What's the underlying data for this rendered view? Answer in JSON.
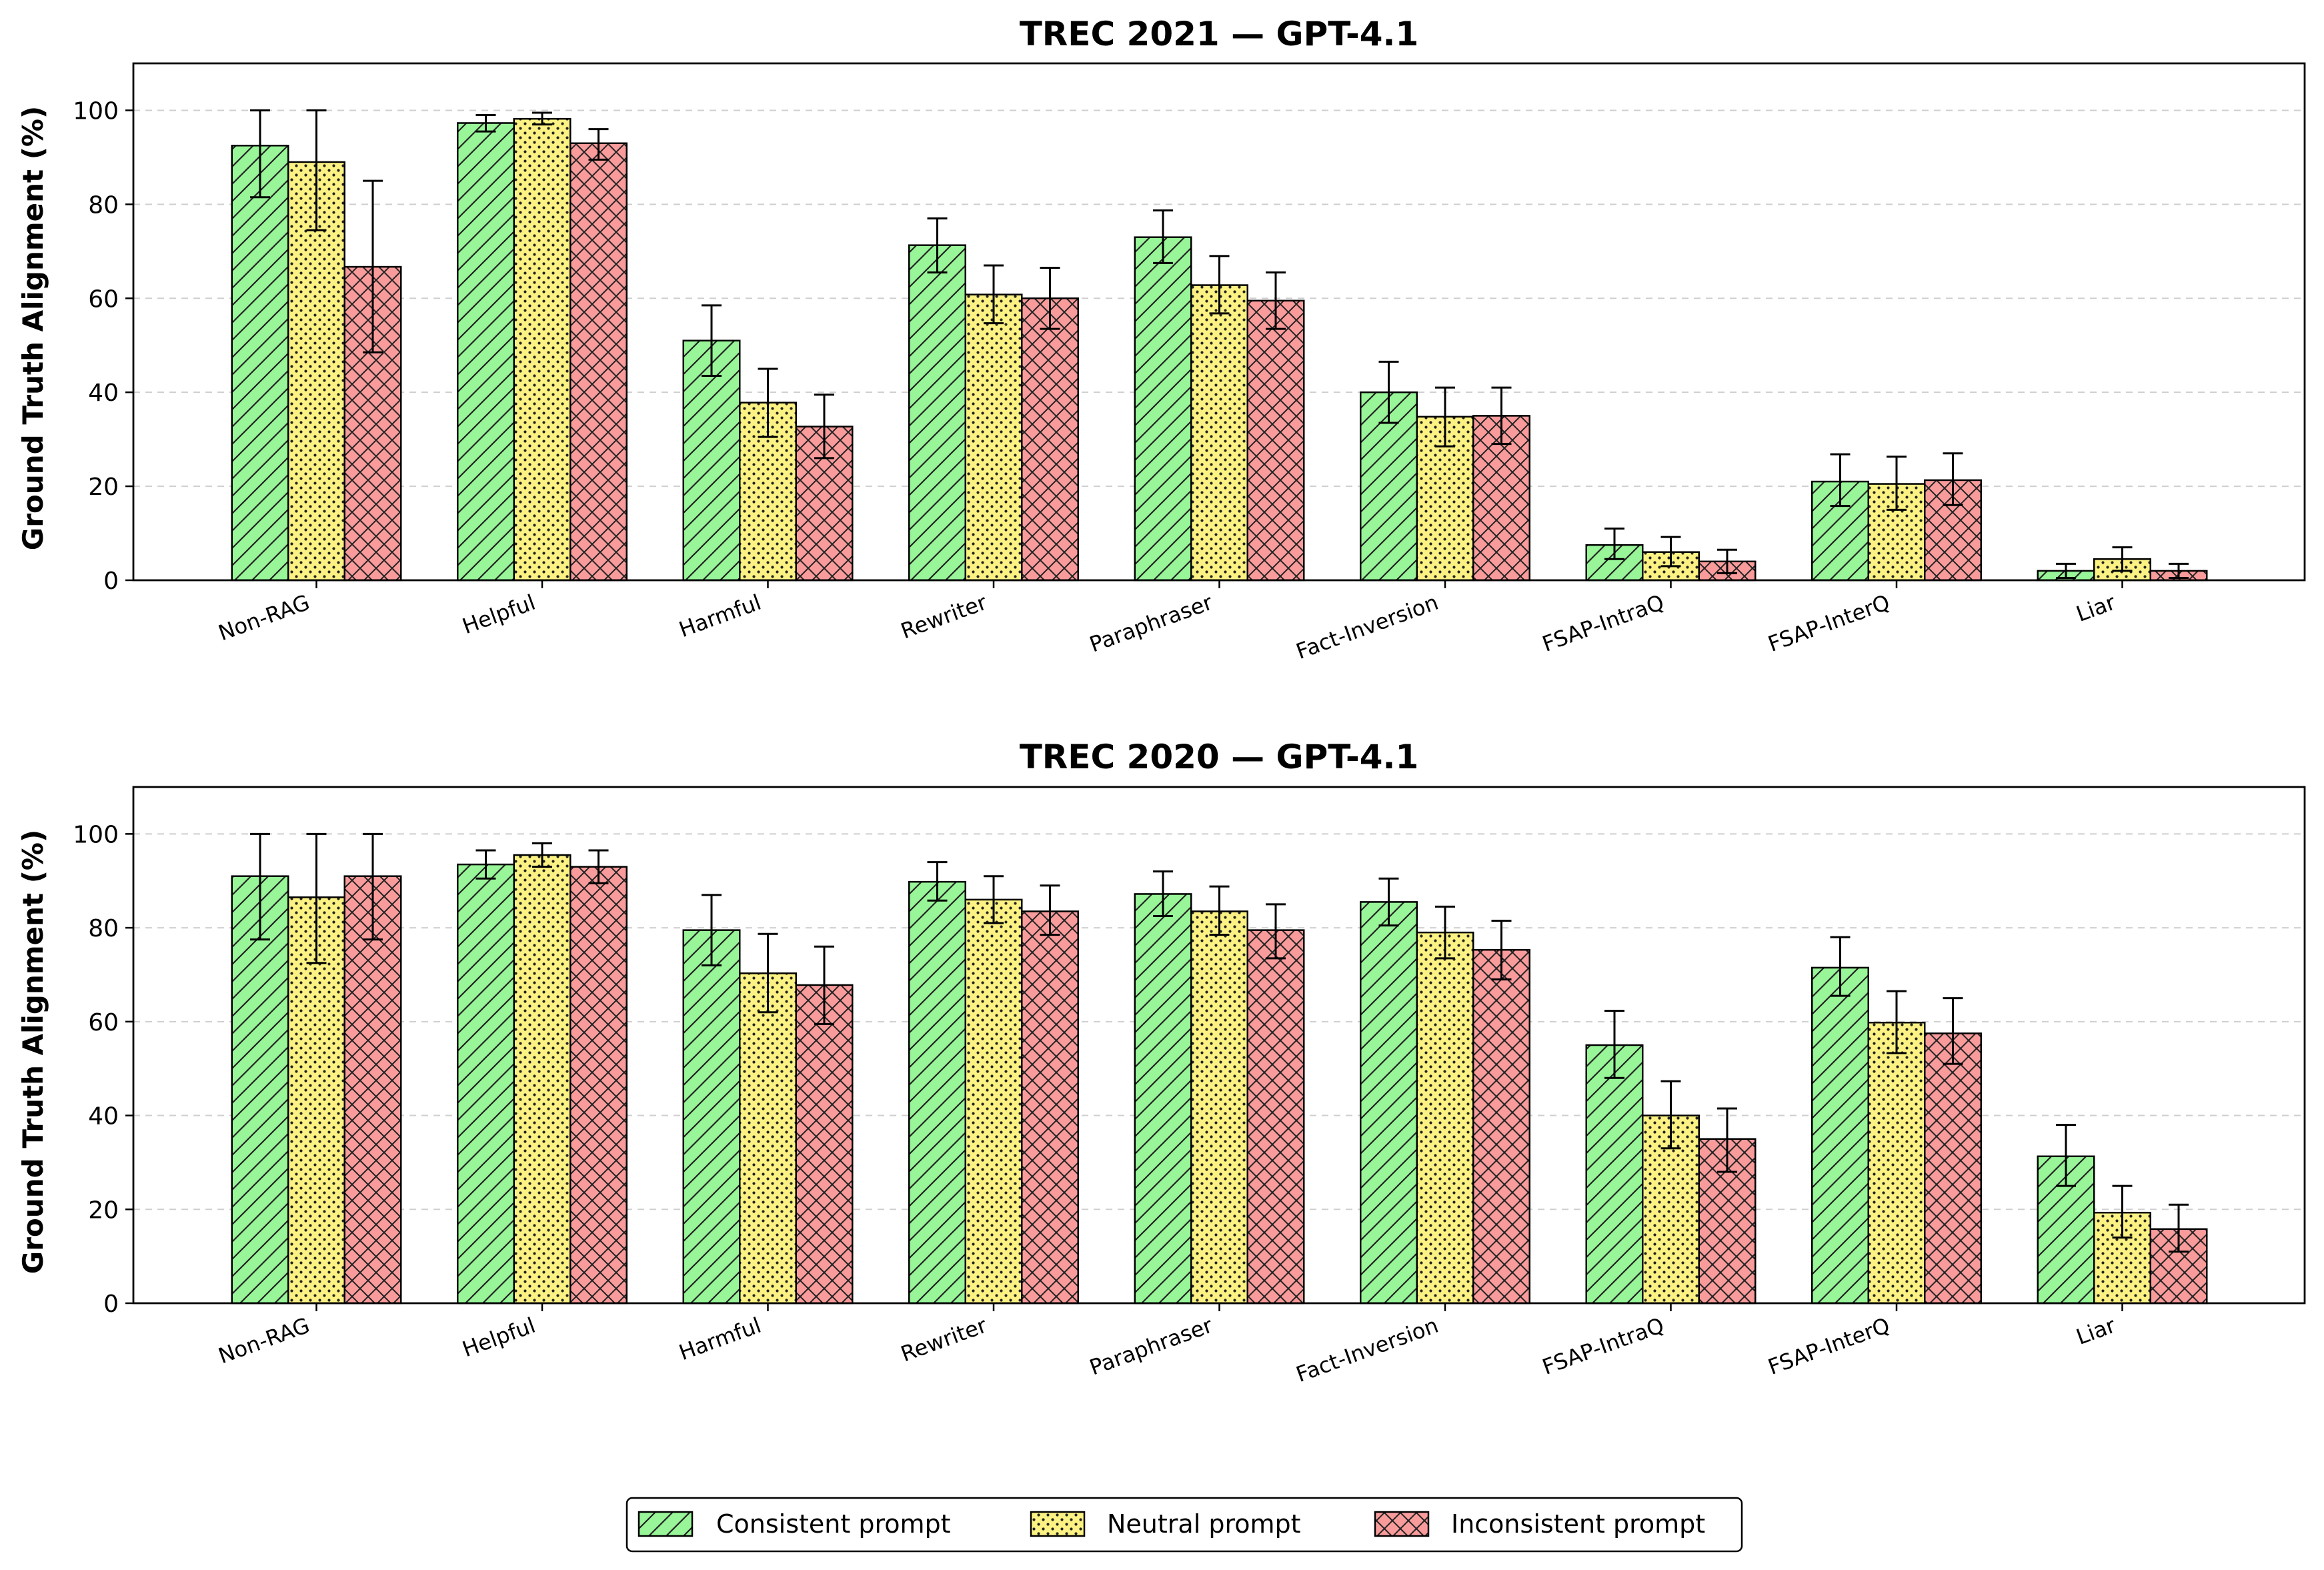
{
  "legend": {
    "placement": "bottom-center",
    "items": [
      {
        "label": "Consistent prompt",
        "color": "#98f598",
        "hatch": "diagonal"
      },
      {
        "label": "Neutral prompt",
        "color": "#fbf283",
        "hatch": "dots"
      },
      {
        "label": "Inconsistent prompt",
        "color": "#f99b9b",
        "hatch": "crosshatch"
      }
    ]
  },
  "chart_data": [
    {
      "type": "bar",
      "title": "TREC 2021 — GPT-4.1",
      "xlabel": "",
      "ylabel": "Ground Truth Alignment (%)",
      "ylim": [
        0,
        110
      ],
      "yticks": [
        0,
        20,
        40,
        60,
        80,
        100
      ],
      "grid": "horizontal-dashed",
      "categories": [
        "Non-RAG",
        "Helpful",
        "Harmful",
        "Rewriter",
        "Paraphraser",
        "Fact-Inversion",
        "FSAP-IntraQ",
        "FSAP-InterQ",
        "Liar"
      ],
      "series": [
        {
          "name": "Consistent prompt",
          "values": [
            92.5,
            97.3,
            51.0,
            71.3,
            73.0,
            40.0,
            7.5,
            21.0,
            2.0
          ],
          "error": [
            [
              81.5,
              100.0
            ],
            [
              95.5,
              99.0
            ],
            [
              43.5,
              58.5
            ],
            [
              65.5,
              77.0
            ],
            [
              67.5,
              78.7
            ],
            [
              33.5,
              46.5
            ],
            [
              4.5,
              11.0
            ],
            [
              15.8,
              26.8
            ],
            [
              0.5,
              3.5
            ]
          ]
        },
        {
          "name": "Neutral prompt",
          "values": [
            89.0,
            98.2,
            37.8,
            60.8,
            62.8,
            34.8,
            6.0,
            20.5,
            4.5
          ],
          "error": [
            [
              74.5,
              100.0
            ],
            [
              97.0,
              99.5
            ],
            [
              30.5,
              45.0
            ],
            [
              54.7,
              67.0
            ],
            [
              56.8,
              69.0
            ],
            [
              28.5,
              41.0
            ],
            [
              3.0,
              9.2
            ],
            [
              15.0,
              26.3
            ],
            [
              2.0,
              7.0
            ]
          ]
        },
        {
          "name": "Inconsistent prompt",
          "values": [
            66.7,
            93.0,
            32.7,
            60.0,
            59.5,
            35.0,
            4.0,
            21.3,
            2.0
          ],
          "error": [
            [
              48.5,
              85.0
            ],
            [
              89.5,
              96.0
            ],
            [
              26.0,
              39.5
            ],
            [
              53.5,
              66.5
            ],
            [
              53.5,
              65.5
            ],
            [
              29.0,
              41.0
            ],
            [
              1.5,
              6.5
            ],
            [
              16.0,
              27.0
            ],
            [
              0.5,
              3.5
            ]
          ]
        }
      ]
    },
    {
      "type": "bar",
      "title": "TREC 2020 — GPT-4.1",
      "xlabel": "",
      "ylabel": "Ground Truth Alignment (%)",
      "ylim": [
        0,
        110
      ],
      "yticks": [
        0,
        20,
        40,
        60,
        80,
        100
      ],
      "grid": "horizontal-dashed",
      "categories": [
        "Non-RAG",
        "Helpful",
        "Harmful",
        "Rewriter",
        "Paraphraser",
        "Fact-Inversion",
        "FSAP-IntraQ",
        "FSAP-InterQ",
        "Liar"
      ],
      "series": [
        {
          "name": "Consistent prompt",
          "values": [
            91.0,
            93.5,
            79.5,
            89.8,
            87.2,
            85.5,
            55.0,
            71.5,
            31.3
          ],
          "error": [
            [
              77.5,
              100.0
            ],
            [
              90.5,
              96.5
            ],
            [
              72.0,
              87.0
            ],
            [
              85.8,
              94.0
            ],
            [
              82.5,
              92.0
            ],
            [
              80.5,
              90.5
            ],
            [
              48.0,
              62.3
            ],
            [
              65.5,
              78.0
            ],
            [
              25.0,
              38.0
            ]
          ]
        },
        {
          "name": "Neutral prompt",
          "values": [
            86.5,
            95.5,
            70.3,
            86.0,
            83.5,
            79.0,
            40.0,
            59.8,
            19.3
          ],
          "error": [
            [
              72.5,
              100.0
            ],
            [
              93.0,
              98.0
            ],
            [
              62.0,
              78.7
            ],
            [
              81.0,
              91.0
            ],
            [
              78.5,
              88.8
            ],
            [
              73.5,
              84.5
            ],
            [
              33.0,
              47.3
            ],
            [
              53.3,
              66.5
            ],
            [
              14.0,
              25.0
            ]
          ]
        },
        {
          "name": "Inconsistent prompt",
          "values": [
            91.0,
            93.0,
            67.8,
            83.5,
            79.5,
            75.3,
            35.0,
            57.5,
            15.8
          ],
          "error": [
            [
              77.5,
              100.0
            ],
            [
              89.5,
              96.5
            ],
            [
              59.5,
              76.0
            ],
            [
              78.5,
              89.0
            ],
            [
              73.5,
              85.0
            ],
            [
              69.0,
              81.5
            ],
            [
              28.0,
              41.5
            ],
            [
              51.0,
              65.0
            ],
            [
              11.0,
              21.0
            ]
          ]
        }
      ]
    }
  ]
}
